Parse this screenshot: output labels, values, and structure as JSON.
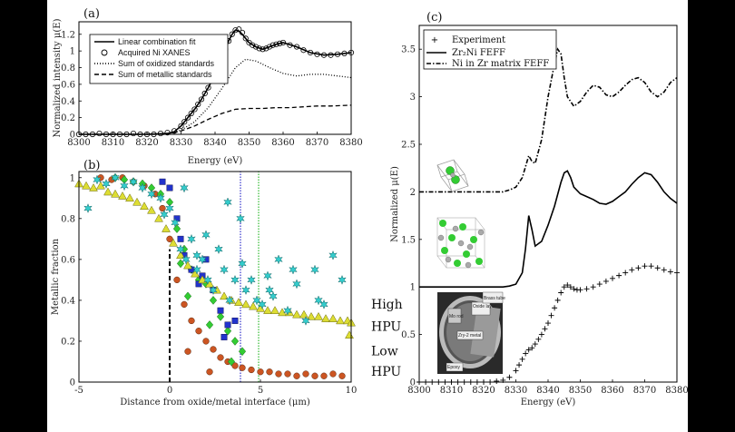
{
  "chart_data": [
    {
      "id": "a",
      "type": "line",
      "panel_label": "(a)",
      "xlabel": "Energy (eV)",
      "ylabel": "Normalized intensity μ(E)",
      "xlim": [
        8300,
        8380
      ],
      "ylim": [
        0,
        1.35
      ],
      "xticks": [
        8300,
        8310,
        8320,
        8330,
        8340,
        8350,
        8360,
        8370,
        8380
      ],
      "yticks": [
        0,
        0.2,
        0.4,
        0.6,
        0.8,
        1,
        1.2
      ],
      "ytick_labels": [
        "0",
        "0.2",
        "0.4",
        "0.6",
        "0.8",
        "1",
        "1.2"
      ],
      "legend_position": "top-left",
      "series": [
        {
          "name": "Linear combination fit",
          "style": "solid",
          "x": [
            8300,
            8320,
            8326,
            8328,
            8330,
            8332,
            8334,
            8336,
            8338,
            8340,
            8342,
            8344,
            8345,
            8346,
            8347,
            8348,
            8350,
            8352,
            8354,
            8356,
            8358,
            8360,
            8364,
            8368,
            8372,
            8376,
            8380
          ],
          "y": [
            0,
            0,
            0.01,
            0.03,
            0.1,
            0.2,
            0.3,
            0.42,
            0.56,
            0.72,
            0.92,
            1.12,
            1.2,
            1.25,
            1.24,
            1.2,
            1.1,
            1.05,
            1.02,
            1.05,
            1.08,
            1.1,
            1.05,
            0.98,
            0.95,
            0.96,
            0.98
          ]
        },
        {
          "name": "Acquired Ni XANES",
          "style": "circles",
          "x": [
            8300,
            8302,
            8304,
            8306,
            8308,
            8310,
            8312,
            8314,
            8316,
            8318,
            8320,
            8322,
            8324,
            8326,
            8328,
            8330,
            8331,
            8332,
            8333,
            8334,
            8335,
            8336,
            8337,
            8338,
            8339,
            8340,
            8341,
            8342,
            8343,
            8344,
            8345,
            8346,
            8347,
            8348,
            8349,
            8350,
            8351,
            8352,
            8353,
            8354,
            8355,
            8356,
            8357,
            8358,
            8359,
            8360,
            8362,
            8364,
            8366,
            8368,
            8370,
            8372,
            8374,
            8376,
            8378,
            8380
          ],
          "y": [
            0,
            0,
            0,
            0.01,
            0,
            0,
            0,
            0,
            0.01,
            0,
            0,
            0,
            0.01,
            0.02,
            0.04,
            0.1,
            0.15,
            0.2,
            0.25,
            0.3,
            0.36,
            0.42,
            0.49,
            0.56,
            0.64,
            0.72,
            0.82,
            0.92,
            1.02,
            1.12,
            1.2,
            1.25,
            1.26,
            1.22,
            1.15,
            1.1,
            1.07,
            1.05,
            1.03,
            1.02,
            1.03,
            1.05,
            1.07,
            1.08,
            1.09,
            1.1,
            1.07,
            1.05,
            1.01,
            0.98,
            0.96,
            0.95,
            0.95,
            0.96,
            0.97,
            0.98
          ]
        },
        {
          "name": "Sum of oxidized standards",
          "style": "dotted",
          "x": [
            8300,
            8326,
            8330,
            8334,
            8338,
            8342,
            8346,
            8349,
            8352,
            8356,
            8360,
            8364,
            8368,
            8372,
            8376,
            8380
          ],
          "y": [
            0,
            0,
            0.05,
            0.15,
            0.32,
            0.55,
            0.8,
            0.9,
            0.88,
            0.8,
            0.73,
            0.7,
            0.72,
            0.72,
            0.7,
            0.68
          ]
        },
        {
          "name": "Sum of metallic standards",
          "style": "dashed",
          "x": [
            8300,
            8326,
            8330,
            8334,
            8338,
            8342,
            8346,
            8350,
            8354,
            8358,
            8362,
            8366,
            8370,
            8374,
            8380
          ],
          "y": [
            0,
            0,
            0.04,
            0.1,
            0.18,
            0.25,
            0.3,
            0.31,
            0.31,
            0.32,
            0.32,
            0.33,
            0.34,
            0.34,
            0.35
          ]
        }
      ]
    },
    {
      "id": "b",
      "type": "scatter",
      "panel_label": "(b)",
      "xlabel": "Distance from oxide/metal interface (μm)",
      "ylabel": "Metallic fraction",
      "xlim": [
        -5,
        10
      ],
      "ylim": [
        0,
        1.03
      ],
      "xticks": [
        -5,
        0,
        5,
        10
      ],
      "yticks": [
        0,
        0.2,
        0.4,
        0.6,
        0.8,
        1
      ],
      "vlines": [
        {
          "x": 0,
          "color": "#000000",
          "style": "dashed"
        },
        {
          "x": 3.9,
          "color": "#3333cc",
          "style": "dotted"
        },
        {
          "x": 4.9,
          "color": "#33bb33",
          "style": "dotted"
        }
      ],
      "annotations": [
        {
          "text": "High",
          "x": 11.1,
          "y": 0.36
        },
        {
          "text": "HPU",
          "x": 11.1,
          "y": 0.25
        },
        {
          "text": "Low",
          "x": 11.1,
          "y": 0.13
        },
        {
          "text": "HPU",
          "x": 11.1,
          "y": 0.03
        }
      ],
      "series": [
        {
          "marker": "star",
          "color": "#33cccc",
          "x": [
            -4.5,
            -4,
            -3.5,
            -3,
            -2.5,
            -2,
            -1.5,
            -1,
            -0.5,
            0,
            0.3,
            0.6,
            0.9,
            1.2,
            1.5,
            1.8,
            2.1,
            2.4,
            2.7,
            3,
            3.3,
            3.6,
            3.9,
            4.2,
            4.5,
            4.8,
            5.1,
            5.4,
            5.7,
            6,
            6.5,
            7,
            7.5,
            8,
            8.5,
            9,
            9.5,
            3.2,
            4,
            5.5,
            6.8,
            8.2,
            0.8,
            2,
            -0.3,
            1.5
          ],
          "y": [
            0.85,
            0.99,
            0.97,
            1.0,
            0.96,
            0.98,
            0.95,
            0.92,
            0.9,
            0.85,
            0.78,
            0.65,
            0.6,
            0.7,
            0.55,
            0.6,
            0.5,
            0.45,
            0.65,
            0.55,
            0.4,
            0.5,
            0.8,
            0.45,
            0.5,
            0.4,
            0.38,
            0.52,
            0.42,
            0.6,
            0.35,
            0.48,
            0.3,
            0.55,
            0.38,
            0.62,
            0.5,
            0.88,
            0.58,
            0.45,
            0.55,
            0.4,
            0.95,
            0.72,
            0.82,
            0.62
          ]
        },
        {
          "marker": "triangle",
          "color": "#dddd33",
          "x": [
            -5,
            -4.6,
            -4.2,
            -3.8,
            -3.4,
            -3,
            -2.6,
            -2.2,
            -1.8,
            -1.4,
            -1,
            -0.6,
            -0.2,
            0.2,
            0.6,
            1,
            1.4,
            1.8,
            2.2,
            2.6,
            3,
            3.4,
            3.8,
            4.2,
            4.6,
            5,
            5.4,
            5.8,
            6.2,
            6.6,
            7,
            7.4,
            7.8,
            8.2,
            8.6,
            9,
            9.4,
            9.8,
            10,
            9.9
          ],
          "y": [
            0.97,
            0.96,
            0.95,
            0.96,
            0.93,
            0.92,
            0.91,
            0.9,
            0.88,
            0.86,
            0.84,
            0.8,
            0.75,
            0.68,
            0.62,
            0.57,
            0.53,
            0.5,
            0.48,
            0.45,
            0.42,
            0.4,
            0.39,
            0.38,
            0.37,
            0.36,
            0.35,
            0.35,
            0.34,
            0.34,
            0.33,
            0.33,
            0.32,
            0.32,
            0.31,
            0.31,
            0.3,
            0.3,
            0.29,
            0.23
          ]
        },
        {
          "marker": "square",
          "color": "#2233cc",
          "x": [
            -0.4,
            0,
            0.4,
            0.8,
            1.2,
            1.6,
            2,
            2.4,
            2.8,
            3.2,
            3.6,
            0.6,
            1.8,
            3
          ],
          "y": [
            0.98,
            0.95,
            0.8,
            0.62,
            0.55,
            0.48,
            0.6,
            0.45,
            0.35,
            0.28,
            0.3,
            0.7,
            0.52,
            0.22
          ]
        },
        {
          "marker": "diamond",
          "color": "#33cc33",
          "x": [
            -3,
            -2.5,
            -2,
            -1.5,
            -1,
            -0.5,
            0,
            0.4,
            0.8,
            1.2,
            1.6,
            2,
            2.4,
            2.8,
            3.2,
            3.6,
            4,
            1,
            2.2,
            3.4,
            0.6
          ],
          "y": [
            1.0,
            0.99,
            0.98,
            0.97,
            0.95,
            0.92,
            0.88,
            0.75,
            0.65,
            0.55,
            0.5,
            0.48,
            0.4,
            0.32,
            0.25,
            0.2,
            0.15,
            0.42,
            0.28,
            0.1,
            0.58
          ]
        },
        {
          "marker": "circle",
          "color": "#cc5522",
          "x": [
            -3.8,
            -3.2,
            -2.6,
            -2,
            -1.4,
            -0.8,
            -0.4,
            0,
            0.4,
            0.8,
            1.2,
            1.6,
            2,
            2.4,
            2.8,
            3.2,
            3.6,
            4,
            4.5,
            5,
            5.5,
            6,
            6.5,
            7,
            7.5,
            8,
            8.5,
            9,
            9.5,
            1,
            2.2
          ],
          "y": [
            1.0,
            0.99,
            1.0,
            0.98,
            0.96,
            0.92,
            0.85,
            0.7,
            0.5,
            0.38,
            0.3,
            0.25,
            0.2,
            0.16,
            0.12,
            0.1,
            0.08,
            0.07,
            0.06,
            0.05,
            0.05,
            0.04,
            0.04,
            0.03,
            0.04,
            0.03,
            0.03,
            0.04,
            0.03,
            0.15,
            0.05
          ]
        }
      ]
    },
    {
      "id": "c",
      "type": "line",
      "panel_label": "(c)",
      "xlabel": "Energy (eV)",
      "ylabel": "Normalized μ(E)",
      "xlim": [
        8300,
        8380
      ],
      "ylim": [
        0,
        3.75
      ],
      "xticks": [
        8300,
        8310,
        8320,
        8330,
        8340,
        8350,
        8360,
        8370,
        8380
      ],
      "yticks": [
        0,
        0.5,
        1,
        1.5,
        2,
        2.5,
        3,
        3.5
      ],
      "ytick_labels": [
        "0",
        "0.5",
        "1",
        "1.5",
        "2",
        "2.5",
        "3",
        "3.5"
      ],
      "legend_position": "top-left",
      "series": [
        {
          "name": "Experiment",
          "style": "plus",
          "x": [
            8300,
            8302,
            8304,
            8306,
            8308,
            8310,
            8312,
            8314,
            8316,
            8318,
            8320,
            8322,
            8324,
            8326,
            8328,
            8330,
            8331,
            8332,
            8333,
            8334,
            8335,
            8336,
            8337,
            8338,
            8339,
            8340,
            8341,
            8342,
            8343,
            8344,
            8345,
            8346,
            8347,
            8348,
            8349,
            8350,
            8352,
            8354,
            8356,
            8358,
            8360,
            8362,
            8364,
            8366,
            8368,
            8370,
            8372,
            8374,
            8376,
            8378,
            8380
          ],
          "y": [
            0,
            0,
            0,
            0,
            0,
            0,
            0,
            0,
            0,
            0,
            0,
            0,
            0.01,
            0.02,
            0.05,
            0.12,
            0.18,
            0.24,
            0.3,
            0.34,
            0.36,
            0.4,
            0.45,
            0.5,
            0.56,
            0.62,
            0.7,
            0.78,
            0.86,
            0.94,
            1.0,
            1.02,
            1.0,
            0.98,
            0.97,
            0.97,
            0.98,
            1.0,
            1.03,
            1.06,
            1.09,
            1.12,
            1.15,
            1.18,
            1.2,
            1.22,
            1.22,
            1.2,
            1.18,
            1.16,
            1.15
          ]
        },
        {
          "name": "Zr₂Ni FEFF",
          "style": "solid",
          "x": [
            8300,
            8326,
            8328,
            8330,
            8332,
            8333,
            8334,
            8335,
            8336,
            8338,
            8340,
            8342,
            8344,
            8345,
            8346,
            8347,
            8348,
            8350,
            8352,
            8354,
            8356,
            8358,
            8360,
            8362,
            8364,
            8366,
            8368,
            8370,
            8372,
            8374,
            8376,
            8378,
            8380
          ],
          "y": [
            1.0,
            1.0,
            1.01,
            1.03,
            1.15,
            1.4,
            1.75,
            1.6,
            1.43,
            1.48,
            1.65,
            1.85,
            2.1,
            2.2,
            2.22,
            2.15,
            2.05,
            1.98,
            1.95,
            1.92,
            1.88,
            1.87,
            1.9,
            1.95,
            2.0,
            2.08,
            2.15,
            2.2,
            2.18,
            2.1,
            2.0,
            1.93,
            1.88
          ]
        },
        {
          "name": "Ni in Zr matrix FEFF",
          "style": "dashdot",
          "x": [
            8300,
            8326,
            8328,
            8330,
            8332,
            8334,
            8335,
            8336,
            8338,
            8340,
            8342,
            8343,
            8344,
            8345,
            8346,
            8348,
            8350,
            8352,
            8354,
            8356,
            8358,
            8360,
            8362,
            8364,
            8366,
            8368,
            8370,
            8372,
            8374,
            8376,
            8378,
            8380
          ],
          "y": [
            2.0,
            2.0,
            2.02,
            2.05,
            2.15,
            2.38,
            2.32,
            2.3,
            2.55,
            3.0,
            3.35,
            3.5,
            3.45,
            3.2,
            3.0,
            2.9,
            2.95,
            3.05,
            3.12,
            3.1,
            3.02,
            3.0,
            3.05,
            3.12,
            3.18,
            3.2,
            3.15,
            3.05,
            3.0,
            3.05,
            3.15,
            3.2
          ]
        }
      ]
    }
  ],
  "inset_photo": {
    "labels": [
      "Mo rod",
      "Oxide layer",
      "Brass tube",
      "Zry-2 metal",
      "Epoxy"
    ]
  },
  "colors": {
    "cyan_star": "#33cccc",
    "yellow_triangle": "#dddd33",
    "blue_square": "#2233cc",
    "green_diamond": "#33cc33",
    "orange_circle": "#cc5522",
    "atom_green": "#33cc33",
    "atom_gray": "#999999"
  }
}
